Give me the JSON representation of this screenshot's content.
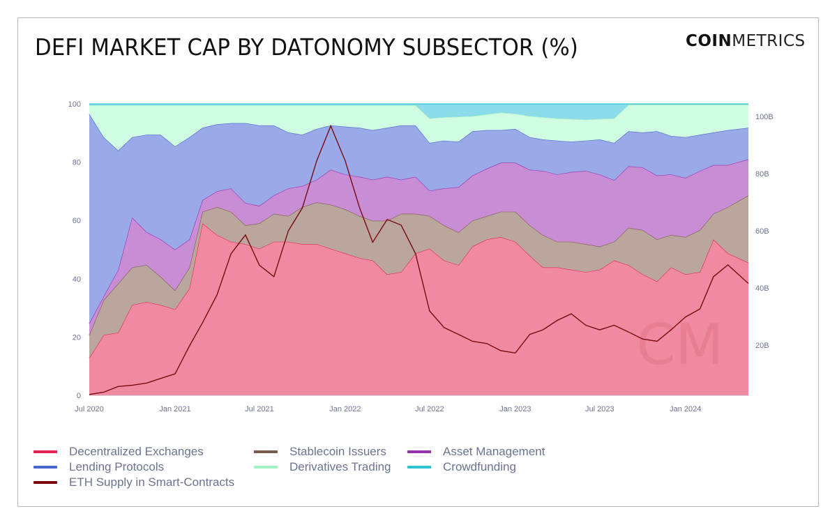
{
  "title": "DEFI MARKET CAP BY DATONOMY SUBSECTOR (%)",
  "logo": {
    "bold": "COIN",
    "light": "METRICS",
    "watermark": "CM"
  },
  "chart_data": {
    "type": "area",
    "stacked": true,
    "title": "DEFI MARKET CAP BY DATONOMY SUBSECTOR (%)",
    "xlabel": "",
    "ylabel": "",
    "ylim": [
      0,
      100
    ],
    "y2lim": [
      2.5,
      104.4
    ],
    "xlim": [
      "2020-07-01",
      "2024-05-15"
    ],
    "grid": false,
    "legend_position": "bottom",
    "yticks": [
      "0",
      "20",
      "40",
      "60",
      "80",
      "100"
    ],
    "y2ticks": [
      "20B",
      "40B",
      "60B",
      "80B",
      "100B"
    ],
    "xticks": [
      {
        "date": "2020-07-01",
        "label": "Jul 2020"
      },
      {
        "date": "2021-01-01",
        "label": "Jan 2021"
      },
      {
        "date": "2021-07-01",
        "label": "Jul 2021"
      },
      {
        "date": "2022-01-01",
        "label": "Jan 2022"
      },
      {
        "date": "2022-07-01",
        "label": "Jul 2022"
      },
      {
        "date": "2023-01-01",
        "label": "Jan 2023"
      },
      {
        "date": "2023-07-01",
        "label": "Jul 2023"
      },
      {
        "date": "2024-01-01",
        "label": "Jan 2024"
      }
    ],
    "x": [
      "2020-07-01",
      "2020-08-01",
      "2020-09-01",
      "2020-10-01",
      "2020-11-01",
      "2020-12-01",
      "2021-01-01",
      "2021-02-01",
      "2021-03-01",
      "2021-04-01",
      "2021-05-01",
      "2021-06-01",
      "2021-07-01",
      "2021-08-01",
      "2021-09-01",
      "2021-10-01",
      "2021-11-01",
      "2021-12-01",
      "2022-01-01",
      "2022-02-01",
      "2022-03-01",
      "2022-04-01",
      "2022-05-01",
      "2022-06-01",
      "2022-07-01",
      "2022-08-01",
      "2022-09-01",
      "2022-10-01",
      "2022-11-01",
      "2022-12-01",
      "2023-01-01",
      "2023-02-01",
      "2023-03-01",
      "2023-04-01",
      "2023-05-01",
      "2023-06-01",
      "2023-07-01",
      "2023-08-01",
      "2023-09-01",
      "2023-10-01",
      "2023-11-01",
      "2023-12-01",
      "2024-01-01",
      "2024-02-01",
      "2024-03-01",
      "2024-04-01",
      "2024-05-15"
    ],
    "series": [
      {
        "name": "Decentralized Exchanges",
        "axis": "left",
        "fill": "#f08aa0",
        "color": "#e3264f",
        "values": [
          12.8,
          20.7,
          21.5,
          31.0,
          32.0,
          31.0,
          29.5,
          36.7,
          59.0,
          55.0,
          52.7,
          51.9,
          50.3,
          52.7,
          52.7,
          51.9,
          51.9,
          50.3,
          48.7,
          47.1,
          46.3,
          41.5,
          42.3,
          48.7,
          50.3,
          46.3,
          44.7,
          51.1,
          53.5,
          54.3,
          52.7,
          47.9,
          43.9,
          43.9,
          43.1,
          42.3,
          43.1,
          46.3,
          44.7,
          41.5,
          39.1,
          43.9,
          41.5,
          42.3,
          53.5,
          48.7,
          45.5
        ]
      },
      {
        "name": "Stablecoin Issuers",
        "axis": "left",
        "fill": "#bba69e",
        "color": "#7a5a4b",
        "values": [
          7.9,
          12.0,
          16.8,
          12.9,
          12.7,
          9.7,
          6.5,
          7.2,
          4.0,
          9.6,
          10.3,
          6.4,
          8.7,
          9.6,
          8.8,
          12.7,
          14.3,
          15.1,
          15.1,
          14.4,
          13.6,
          18.4,
          20.0,
          13.6,
          11.2,
          12.0,
          11.2,
          8.8,
          8.0,
          8.7,
          10.3,
          10.4,
          11.1,
          8.8,
          9.6,
          9.6,
          7.9,
          6.4,
          12.8,
          15.2,
          14.4,
          11.1,
          12.8,
          14.4,
          8.8,
          15.9,
          23.1
        ]
      },
      {
        "name": "Asset Management",
        "axis": "left",
        "fill": "#c98dd6",
        "color": "#9a30ad",
        "values": [
          4.0,
          1.3,
          4.7,
          17.1,
          11.3,
          12.8,
          14.0,
          9.6,
          4.0,
          5.4,
          8.0,
          7.7,
          6.0,
          6.3,
          9.5,
          7.2,
          7.8,
          12.0,
          12.0,
          13.5,
          14.1,
          15.1,
          11.7,
          12.7,
          8.7,
          12.7,
          15.5,
          15.5,
          16.3,
          16.8,
          16.8,
          19.1,
          22.0,
          23.1,
          23.9,
          25.1,
          24.8,
          21.1,
          21.1,
          21.5,
          21.9,
          20.8,
          20.3,
          20.3,
          16.7,
          14.4,
          12.4
        ]
      },
      {
        "name": "Lending Protocols",
        "axis": "left",
        "fill": "#9aa9e7",
        "color": "#4a66d0",
        "values": [
          71.9,
          54.6,
          41.0,
          27.6,
          33.4,
          35.9,
          35.4,
          35.1,
          24.8,
          23.0,
          22.4,
          27.4,
          27.6,
          24.0,
          19.2,
          17.6,
          17.4,
          15.2,
          16.4,
          16.8,
          17.0,
          16.8,
          18.6,
          17.6,
          16.4,
          16.4,
          15.6,
          15.2,
          13.2,
          11.2,
          11.6,
          11.2,
          10.8,
          11.6,
          10.4,
          10.4,
          12.0,
          12.8,
          12.0,
          12.0,
          15.2,
          13.2,
          14.0,
          12.4,
          11.2,
          12.0,
          10.8
        ]
      },
      {
        "name": "Derivatives Trading",
        "axis": "left",
        "fill": "#d0fce1",
        "color": "#a2f3c3",
        "values": [
          2.9,
          10.9,
          15.5,
          10.9,
          10.1,
          10.1,
          14.1,
          10.9,
          7.7,
          6.5,
          6.1,
          6.1,
          6.9,
          6.9,
          9.3,
          10.1,
          8.1,
          6.9,
          7.3,
          7.7,
          8.5,
          7.7,
          6.9,
          6.9,
          8.4,
          8.0,
          8.6,
          5.2,
          5.4,
          6.0,
          5.2,
          7.2,
          7.6,
          7.6,
          7.8,
          7.2,
          7.0,
          8.4,
          9.1,
          9.5,
          9.1,
          10.7,
          11.1,
          10.3,
          9.5,
          8.7,
          7.9
        ]
      },
      {
        "name": "Crowdfunding",
        "axis": "left",
        "fill": "#8bdbe9",
        "color": "#2ec3d5",
        "values": [
          0.5,
          0.5,
          0.5,
          0.5,
          0.5,
          0.5,
          0.5,
          0.5,
          0.5,
          0.5,
          0.5,
          0.5,
          0.5,
          0.5,
          0.5,
          0.5,
          0.5,
          0.5,
          0.5,
          0.5,
          0.5,
          0.5,
          0.5,
          0.5,
          5.0,
          4.6,
          4.4,
          4.2,
          3.6,
          3.0,
          3.4,
          4.2,
          4.6,
          5.0,
          5.2,
          5.4,
          5.2,
          5.0,
          0.3,
          0.3,
          0.3,
          0.3,
          0.3,
          0.3,
          0.3,
          0.3,
          0.3
        ]
      },
      {
        "name": "ETH Supply in Smart-Contracts",
        "axis": "right",
        "type": "line",
        "unit": "B",
        "color": "#7a0a0e",
        "values": [
          2.8,
          3.6,
          5.6,
          6.0,
          6.8,
          8.4,
          10.0,
          19.8,
          27.9,
          37.6,
          52.0,
          58.6,
          48.0,
          44.0,
          60.0,
          68.0,
          84.5,
          96.7,
          84.5,
          68.0,
          56.0,
          64.0,
          62.0,
          52.0,
          32.0,
          26.2,
          23.8,
          21.4,
          20.6,
          18.1,
          17.3,
          23.8,
          25.4,
          28.7,
          31.0,
          27.0,
          25.4,
          27.0,
          24.6,
          22.2,
          21.4,
          25.4,
          29.9,
          32.7,
          44.0,
          48.1,
          41.6
        ]
      }
    ]
  },
  "legend": [
    {
      "label": "Decentralized Exchanges",
      "color": "#e3264f"
    },
    {
      "label": "Stablecoin Issuers",
      "color": "#7a5a4b"
    },
    {
      "label": "Asset Management",
      "color": "#9a30ad"
    },
    {
      "label": "Lending Protocols",
      "color": "#4a66d0"
    },
    {
      "label": "Derivatives Trading",
      "color": "#a2f3c3"
    },
    {
      "label": "Crowdfunding",
      "color": "#2ec3d5"
    },
    {
      "label": "ETH Supply in Smart-Contracts",
      "color": "#7a0a0e"
    }
  ]
}
